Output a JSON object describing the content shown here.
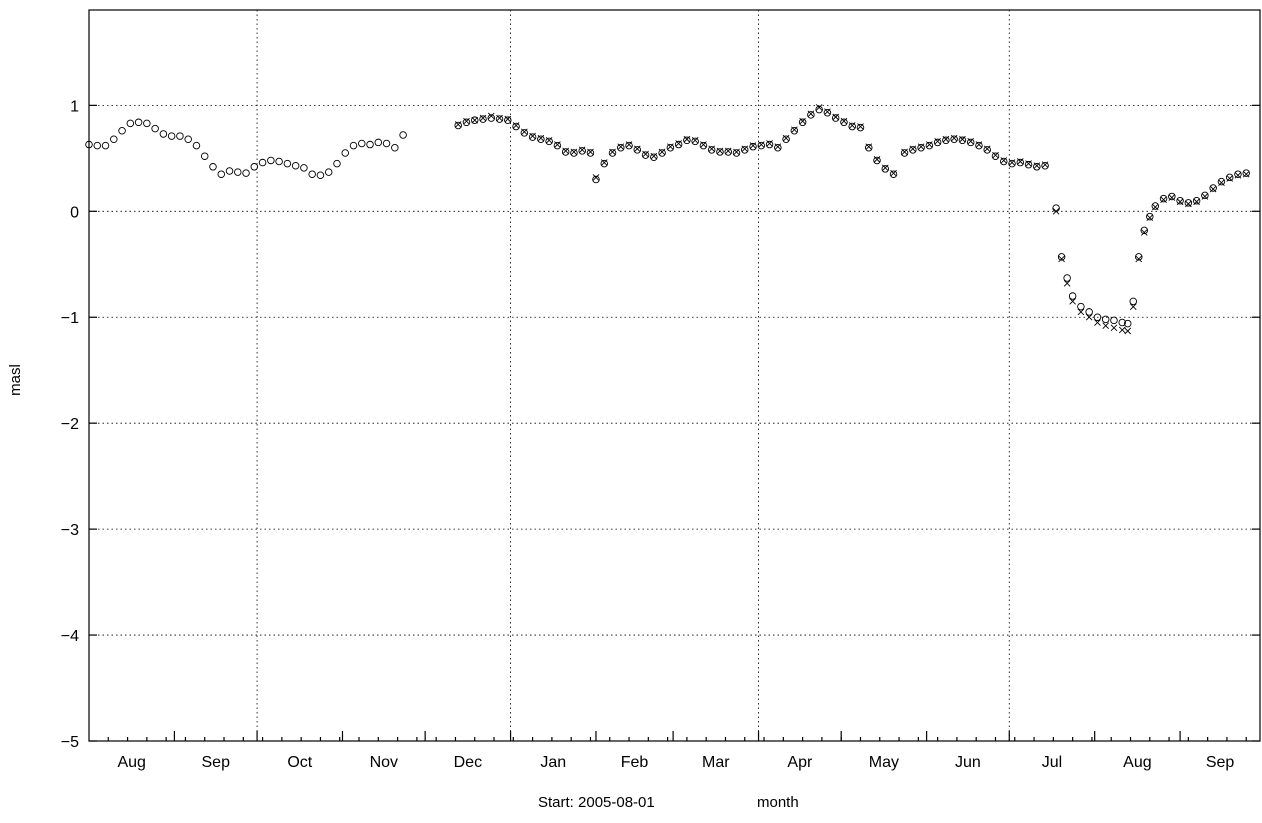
{
  "chart_data": {
    "type": "scatter",
    "title": "",
    "ylabel": "masl",
    "xlabel": "month",
    "start_label": "Start: 2005-08-01",
    "x_start": "2005-08-01",
    "x_end": "2006-09-30",
    "ylim": [
      -5,
      1.9
    ],
    "yticks": [
      -5,
      -4,
      -3,
      -2,
      -1,
      0,
      1
    ],
    "ytick_labels": [
      "−5",
      "−4",
      "−3",
      "−2",
      "−1",
      "0",
      "1"
    ],
    "month_labels": [
      "Aug",
      "Sep",
      "Oct",
      "Nov",
      "Dec",
      "Jan",
      "Feb",
      "Mar",
      "Apr",
      "May",
      "Jun",
      "Jul",
      "Aug",
      "Sep"
    ],
    "grid": true,
    "legend": "none",
    "series": [
      {
        "marker": "circle",
        "points": [
          [
            "2005-08-01",
            0.63
          ],
          [
            "2005-08-04",
            0.62
          ],
          [
            "2005-08-07",
            0.62
          ],
          [
            "2005-08-10",
            0.68
          ],
          [
            "2005-08-13",
            0.76
          ],
          [
            "2005-08-16",
            0.83
          ],
          [
            "2005-08-19",
            0.84
          ],
          [
            "2005-08-22",
            0.83
          ],
          [
            "2005-08-25",
            0.78
          ],
          [
            "2005-08-28",
            0.73
          ],
          [
            "2005-08-31",
            0.71
          ],
          [
            "2005-09-03",
            0.71
          ],
          [
            "2005-09-06",
            0.68
          ],
          [
            "2005-09-09",
            0.62
          ],
          [
            "2005-09-12",
            0.52
          ],
          [
            "2005-09-15",
            0.42
          ],
          [
            "2005-09-18",
            0.35
          ],
          [
            "2005-09-21",
            0.38
          ],
          [
            "2005-09-24",
            0.37
          ],
          [
            "2005-09-27",
            0.36
          ],
          [
            "2005-09-30",
            0.42
          ],
          [
            "2005-10-03",
            0.46
          ],
          [
            "2005-10-06",
            0.48
          ],
          [
            "2005-10-09",
            0.47
          ],
          [
            "2005-10-12",
            0.45
          ],
          [
            "2005-10-15",
            0.43
          ],
          [
            "2005-10-18",
            0.41
          ],
          [
            "2005-10-21",
            0.35
          ],
          [
            "2005-10-24",
            0.34
          ],
          [
            "2005-10-27",
            0.37
          ],
          [
            "2005-10-30",
            0.45
          ],
          [
            "2005-11-02",
            0.55
          ],
          [
            "2005-11-05",
            0.62
          ],
          [
            "2005-11-08",
            0.64
          ],
          [
            "2005-11-11",
            0.63
          ],
          [
            "2005-11-14",
            0.65
          ],
          [
            "2005-11-17",
            0.64
          ],
          [
            "2005-11-20",
            0.6
          ],
          [
            "2005-11-23",
            0.72
          ],
          [
            "2005-12-13",
            0.81
          ],
          [
            "2005-12-16",
            0.84
          ],
          [
            "2005-12-19",
            0.86
          ],
          [
            "2005-12-22",
            0.87
          ],
          [
            "2005-12-25",
            0.88
          ],
          [
            "2005-12-28",
            0.87
          ],
          [
            "2005-12-31",
            0.86
          ],
          [
            "2006-01-03",
            0.8
          ],
          [
            "2006-01-06",
            0.74
          ],
          [
            "2006-01-09",
            0.7
          ],
          [
            "2006-01-12",
            0.68
          ],
          [
            "2006-01-15",
            0.66
          ],
          [
            "2006-01-18",
            0.62
          ],
          [
            "2006-01-21",
            0.56
          ],
          [
            "2006-01-24",
            0.55
          ],
          [
            "2006-01-27",
            0.57
          ],
          [
            "2006-01-30",
            0.55
          ],
          [
            "2006-02-01",
            0.3
          ],
          [
            "2006-02-04",
            0.45
          ],
          [
            "2006-02-07",
            0.55
          ],
          [
            "2006-02-10",
            0.6
          ],
          [
            "2006-02-13",
            0.62
          ],
          [
            "2006-02-16",
            0.58
          ],
          [
            "2006-02-19",
            0.53
          ],
          [
            "2006-02-22",
            0.51
          ],
          [
            "2006-02-25",
            0.55
          ],
          [
            "2006-02-28",
            0.6
          ],
          [
            "2006-03-03",
            0.63
          ],
          [
            "2006-03-06",
            0.67
          ],
          [
            "2006-03-09",
            0.66
          ],
          [
            "2006-03-12",
            0.62
          ],
          [
            "2006-03-15",
            0.58
          ],
          [
            "2006-03-18",
            0.56
          ],
          [
            "2006-03-21",
            0.56
          ],
          [
            "2006-03-24",
            0.55
          ],
          [
            "2006-03-27",
            0.58
          ],
          [
            "2006-03-30",
            0.61
          ],
          [
            "2006-04-02",
            0.62
          ],
          [
            "2006-04-05",
            0.63
          ],
          [
            "2006-04-08",
            0.6
          ],
          [
            "2006-04-11",
            0.68
          ],
          [
            "2006-04-14",
            0.76
          ],
          [
            "2006-04-17",
            0.84
          ],
          [
            "2006-04-20",
            0.91
          ],
          [
            "2006-04-23",
            0.96
          ],
          [
            "2006-04-26",
            0.93
          ],
          [
            "2006-04-29",
            0.88
          ],
          [
            "2006-05-02",
            0.84
          ],
          [
            "2006-05-05",
            0.8
          ],
          [
            "2006-05-08",
            0.79
          ],
          [
            "2006-05-11",
            0.6
          ],
          [
            "2006-05-14",
            0.48
          ],
          [
            "2006-05-17",
            0.4
          ],
          [
            "2006-05-20",
            0.35
          ],
          [
            "2006-05-24",
            0.55
          ],
          [
            "2006-05-27",
            0.58
          ],
          [
            "2006-05-30",
            0.6
          ],
          [
            "2006-06-02",
            0.62
          ],
          [
            "2006-06-05",
            0.65
          ],
          [
            "2006-06-08",
            0.67
          ],
          [
            "2006-06-11",
            0.68
          ],
          [
            "2006-06-14",
            0.67
          ],
          [
            "2006-06-17",
            0.65
          ],
          [
            "2006-06-20",
            0.62
          ],
          [
            "2006-06-23",
            0.58
          ],
          [
            "2006-06-26",
            0.52
          ],
          [
            "2006-06-29",
            0.47
          ],
          [
            "2006-07-02",
            0.45
          ],
          [
            "2006-07-05",
            0.46
          ],
          [
            "2006-07-08",
            0.44
          ],
          [
            "2006-07-11",
            0.42
          ],
          [
            "2006-07-14",
            0.43
          ],
          [
            "2006-07-18",
            0.03
          ],
          [
            "2006-07-20",
            -0.43
          ],
          [
            "2006-07-22",
            -0.63
          ],
          [
            "2006-07-24",
            -0.8
          ],
          [
            "2006-07-27",
            -0.9
          ],
          [
            "2006-07-30",
            -0.95
          ],
          [
            "2006-08-02",
            -1.0
          ],
          [
            "2006-08-05",
            -1.02
          ],
          [
            "2006-08-08",
            -1.03
          ],
          [
            "2006-08-11",
            -1.05
          ],
          [
            "2006-08-13",
            -1.06
          ],
          [
            "2006-08-15",
            -0.85
          ],
          [
            "2006-08-17",
            -0.43
          ],
          [
            "2006-08-19",
            -0.18
          ],
          [
            "2006-08-21",
            -0.05
          ],
          [
            "2006-08-23",
            0.05
          ],
          [
            "2006-08-26",
            0.12
          ],
          [
            "2006-08-29",
            0.14
          ],
          [
            "2006-09-01",
            0.1
          ],
          [
            "2006-09-04",
            0.08
          ],
          [
            "2006-09-07",
            0.1
          ],
          [
            "2006-09-10",
            0.15
          ],
          [
            "2006-09-13",
            0.22
          ],
          [
            "2006-09-16",
            0.28
          ],
          [
            "2006-09-19",
            0.32
          ],
          [
            "2006-09-22",
            0.35
          ],
          [
            "2006-09-25",
            0.36
          ]
        ]
      },
      {
        "marker": "x",
        "points": [
          [
            "2005-12-13",
            0.82
          ],
          [
            "2005-12-16",
            0.85
          ],
          [
            "2005-12-19",
            0.86
          ],
          [
            "2005-12-22",
            0.88
          ],
          [
            "2005-12-25",
            0.9
          ],
          [
            "2005-12-28",
            0.88
          ],
          [
            "2005-12-31",
            0.87
          ],
          [
            "2006-01-03",
            0.81
          ],
          [
            "2006-01-06",
            0.75
          ],
          [
            "2006-01-09",
            0.71
          ],
          [
            "2006-01-12",
            0.69
          ],
          [
            "2006-01-15",
            0.67
          ],
          [
            "2006-01-18",
            0.63
          ],
          [
            "2006-01-21",
            0.57
          ],
          [
            "2006-01-24",
            0.56
          ],
          [
            "2006-01-27",
            0.58
          ],
          [
            "2006-01-30",
            0.56
          ],
          [
            "2006-02-01",
            0.32
          ],
          [
            "2006-02-04",
            0.46
          ],
          [
            "2006-02-07",
            0.56
          ],
          [
            "2006-02-10",
            0.61
          ],
          [
            "2006-02-13",
            0.63
          ],
          [
            "2006-02-16",
            0.59
          ],
          [
            "2006-02-19",
            0.54
          ],
          [
            "2006-02-22",
            0.52
          ],
          [
            "2006-02-25",
            0.56
          ],
          [
            "2006-02-28",
            0.61
          ],
          [
            "2006-03-03",
            0.64
          ],
          [
            "2006-03-06",
            0.68
          ],
          [
            "2006-03-09",
            0.67
          ],
          [
            "2006-03-12",
            0.63
          ],
          [
            "2006-03-15",
            0.59
          ],
          [
            "2006-03-18",
            0.57
          ],
          [
            "2006-03-21",
            0.57
          ],
          [
            "2006-03-24",
            0.56
          ],
          [
            "2006-03-27",
            0.59
          ],
          [
            "2006-03-30",
            0.62
          ],
          [
            "2006-04-02",
            0.63
          ],
          [
            "2006-04-05",
            0.64
          ],
          [
            "2006-04-08",
            0.61
          ],
          [
            "2006-04-11",
            0.69
          ],
          [
            "2006-04-14",
            0.77
          ],
          [
            "2006-04-17",
            0.85
          ],
          [
            "2006-04-20",
            0.92
          ],
          [
            "2006-04-23",
            0.98
          ],
          [
            "2006-04-26",
            0.94
          ],
          [
            "2006-04-29",
            0.89
          ],
          [
            "2006-05-02",
            0.85
          ],
          [
            "2006-05-05",
            0.81
          ],
          [
            "2006-05-08",
            0.8
          ],
          [
            "2006-05-11",
            0.61
          ],
          [
            "2006-05-14",
            0.49
          ],
          [
            "2006-05-17",
            0.41
          ],
          [
            "2006-05-20",
            0.36
          ],
          [
            "2006-05-24",
            0.56
          ],
          [
            "2006-05-27",
            0.59
          ],
          [
            "2006-05-30",
            0.61
          ],
          [
            "2006-06-02",
            0.63
          ],
          [
            "2006-06-05",
            0.66
          ],
          [
            "2006-06-08",
            0.68
          ],
          [
            "2006-06-11",
            0.69
          ],
          [
            "2006-06-14",
            0.68
          ],
          [
            "2006-06-17",
            0.66
          ],
          [
            "2006-06-20",
            0.63
          ],
          [
            "2006-06-23",
            0.59
          ],
          [
            "2006-06-26",
            0.53
          ],
          [
            "2006-06-29",
            0.48
          ],
          [
            "2006-07-02",
            0.46
          ],
          [
            "2006-07-05",
            0.47
          ],
          [
            "2006-07-08",
            0.45
          ],
          [
            "2006-07-11",
            0.43
          ],
          [
            "2006-07-14",
            0.44
          ],
          [
            "2006-07-18",
            0.0
          ],
          [
            "2006-07-20",
            -0.45
          ],
          [
            "2006-07-22",
            -0.68
          ],
          [
            "2006-07-24",
            -0.85
          ],
          [
            "2006-07-27",
            -0.95
          ],
          [
            "2006-07-30",
            -1.0
          ],
          [
            "2006-08-02",
            -1.05
          ],
          [
            "2006-08-05",
            -1.08
          ],
          [
            "2006-08-08",
            -1.1
          ],
          [
            "2006-08-11",
            -1.12
          ],
          [
            "2006-08-13",
            -1.13
          ],
          [
            "2006-08-15",
            -0.9
          ],
          [
            "2006-08-17",
            -0.45
          ],
          [
            "2006-08-19",
            -0.2
          ],
          [
            "2006-08-21",
            -0.06
          ],
          [
            "2006-08-23",
            0.04
          ],
          [
            "2006-08-26",
            0.11
          ],
          [
            "2006-08-29",
            0.13
          ],
          [
            "2006-09-01",
            0.09
          ],
          [
            "2006-09-04",
            0.07
          ],
          [
            "2006-09-07",
            0.09
          ],
          [
            "2006-09-10",
            0.14
          ],
          [
            "2006-09-13",
            0.21
          ],
          [
            "2006-09-16",
            0.27
          ],
          [
            "2006-09-19",
            0.31
          ],
          [
            "2006-09-22",
            0.34
          ],
          [
            "2006-09-25",
            0.35
          ]
        ]
      }
    ]
  }
}
